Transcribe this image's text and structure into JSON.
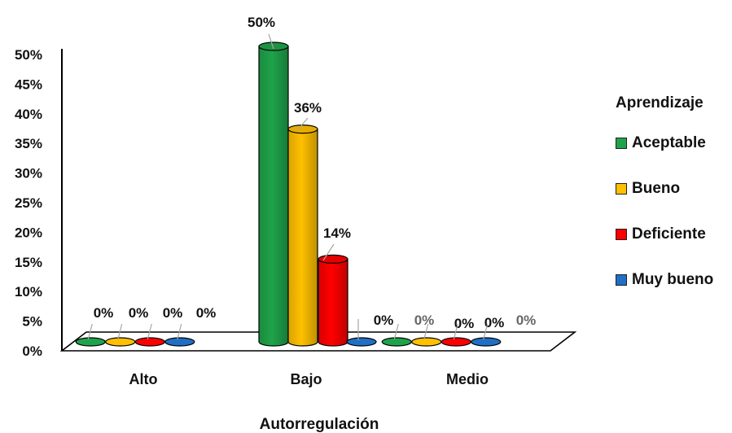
{
  "chart_data": {
    "type": "bar",
    "style": "3d-cylinder",
    "xlabel": "Autorregulación",
    "ylabel": "",
    "ylim": [
      0,
      0.5
    ],
    "yticks": [
      "0%",
      "5%",
      "10%",
      "15%",
      "20%",
      "25%",
      "30%",
      "35%",
      "40%",
      "45%",
      "50%"
    ],
    "categories": [
      "Alto",
      "Bajo",
      "Medio"
    ],
    "series": [
      {
        "name": "Aceptable",
        "color": "#1fa34a",
        "values": [
          0,
          0.5,
          0
        ],
        "labels": [
          "0%",
          "50%",
          "0%"
        ]
      },
      {
        "name": "Bueno",
        "color": "#ffc000",
        "values": [
          0,
          0.36,
          0
        ],
        "labels": [
          "0%",
          "36%",
          "0%"
        ]
      },
      {
        "name": "Deficiente",
        "color": "#ff0000",
        "values": [
          0,
          0.14,
          0
        ],
        "labels": [
          "0%",
          "14%",
          "0%"
        ]
      },
      {
        "name": "Muy bueno",
        "color": "#1f6fc5",
        "values": [
          0,
          0,
          0
        ],
        "labels": [
          "0%",
          "0%",
          "0%"
        ]
      }
    ],
    "legend": {
      "title": "Aprendizaje",
      "position": "right"
    },
    "grid": false
  }
}
